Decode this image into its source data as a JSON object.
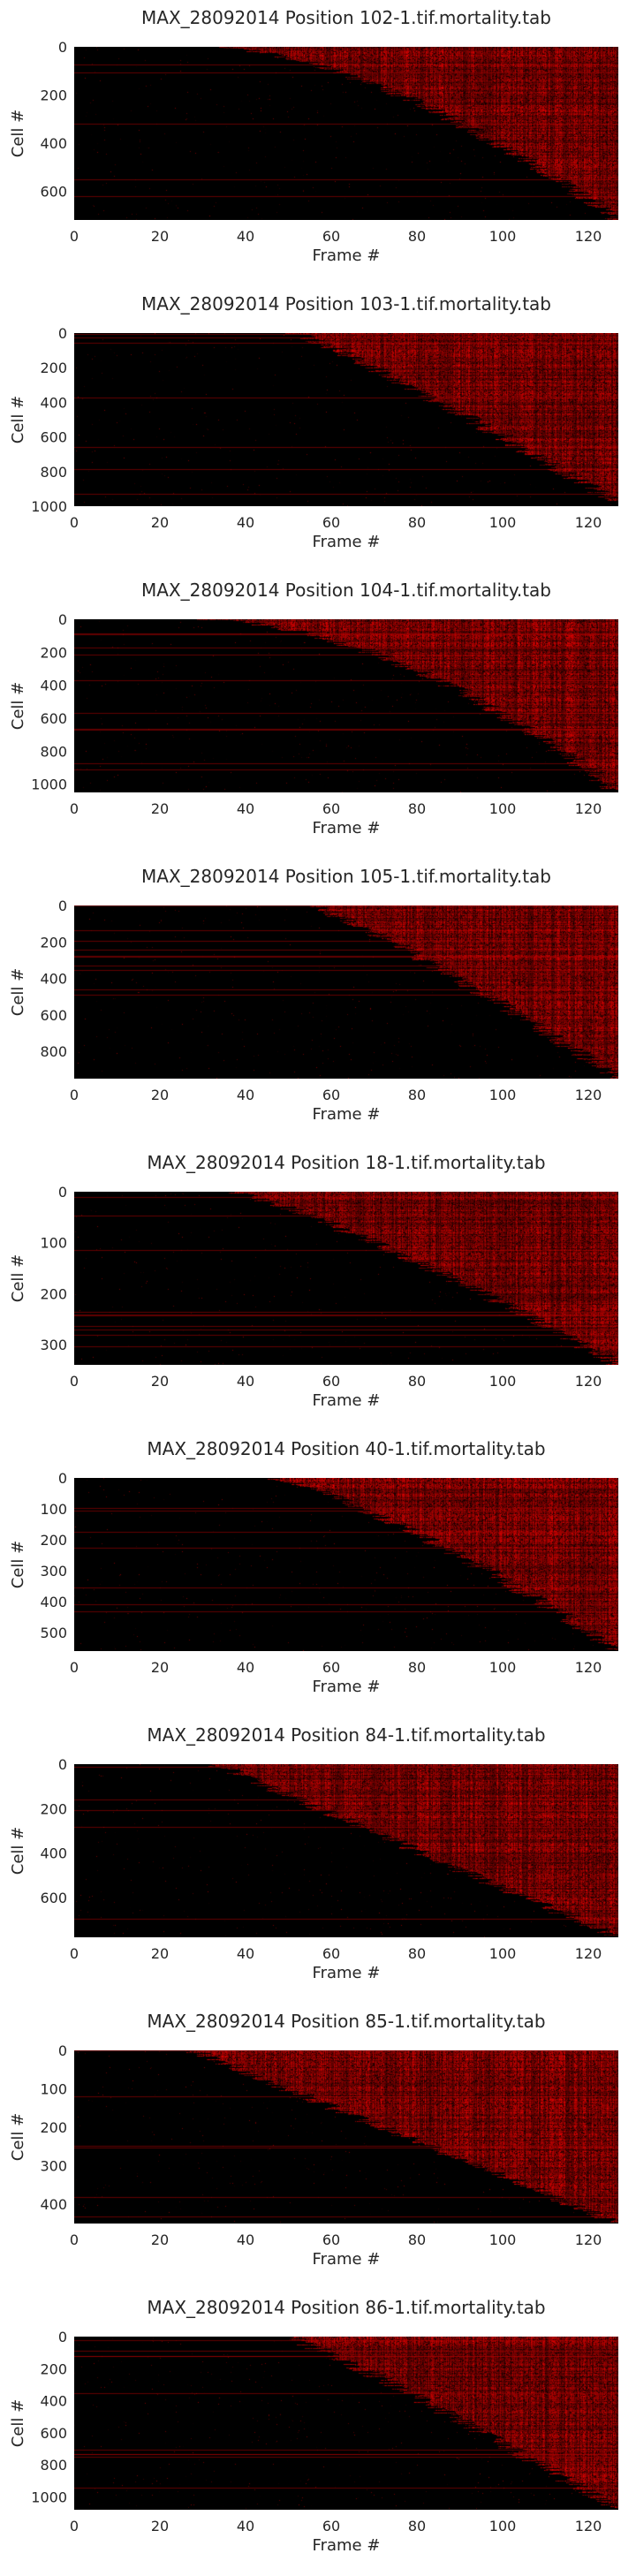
{
  "chart_data": [
    {
      "type": "heatmap",
      "title": "MAX_28092014 Position 102-1.tif.mortality.tab",
      "xlabel": "Frame #",
      "ylabel": "Cell #",
      "xlim": [
        0,
        127
      ],
      "ylim": [
        0,
        720
      ],
      "x_ticks": [
        0,
        20,
        40,
        60,
        80,
        100,
        120
      ],
      "y_ticks": [
        0,
        200,
        400,
        600
      ],
      "grid": false,
      "colormap": {
        "low": "#000000",
        "high": "#ff0000"
      },
      "onset_start_frame": 32,
      "onset_end_frame": 127,
      "onset_shape": 0.6
    },
    {
      "type": "heatmap",
      "title": "MAX_28092014 Position 103-1.tif.mortality.tab",
      "xlabel": "Frame #",
      "ylabel": "Cell #",
      "xlim": [
        0,
        127
      ],
      "ylim": [
        0,
        1000
      ],
      "x_ticks": [
        0,
        20,
        40,
        60,
        80,
        100,
        120
      ],
      "y_ticks": [
        0,
        200,
        400,
        600,
        800,
        1000
      ],
      "grid": false,
      "colormap": {
        "low": "#000000",
        "high": "#ff0000"
      },
      "onset_start_frame": 52,
      "onset_end_frame": 128,
      "onset_shape": 0.9
    },
    {
      "type": "heatmap",
      "title": "MAX_28092014 Position 104-1.tif.mortality.tab",
      "xlabel": "Frame #",
      "ylabel": "Cell #",
      "xlim": [
        0,
        127
      ],
      "ylim": [
        0,
        1050
      ],
      "x_ticks": [
        0,
        20,
        40,
        60,
        80,
        100,
        120
      ],
      "y_ticks": [
        0,
        200,
        400,
        600,
        800,
        1000
      ],
      "grid": false,
      "colormap": {
        "low": "#000000",
        "high": "#ff0000"
      },
      "onset_start_frame": 30,
      "onset_end_frame": 127,
      "onset_shape": 0.55
    },
    {
      "type": "heatmap",
      "title": "MAX_28092014 Position 105-1.tif.mortality.tab",
      "xlabel": "Frame #",
      "ylabel": "Cell #",
      "xlim": [
        0,
        127
      ],
      "ylim": [
        0,
        950
      ],
      "x_ticks": [
        0,
        20,
        40,
        60,
        80,
        100,
        120
      ],
      "y_ticks": [
        0,
        200,
        400,
        600,
        800
      ],
      "grid": false,
      "colormap": {
        "low": "#000000",
        "high": "#ff0000"
      },
      "onset_start_frame": 55,
      "onset_end_frame": 127,
      "onset_shape": 0.85
    },
    {
      "type": "heatmap",
      "title": "MAX_28092014 Position 18-1.tif.mortality.tab",
      "xlabel": "Frame #",
      "ylabel": "Cell #",
      "xlim": [
        0,
        127
      ],
      "ylim": [
        0,
        340
      ],
      "x_ticks": [
        0,
        20,
        40,
        60,
        80,
        100,
        120
      ],
      "y_ticks": [
        0,
        100,
        200,
        300
      ],
      "grid": false,
      "colormap": {
        "low": "#000000",
        "high": "#ff0000"
      },
      "onset_start_frame": 36,
      "onset_end_frame": 127,
      "onset_shape": 0.8
    },
    {
      "type": "heatmap",
      "title": "MAX_28092014 Position 40-1.tif.mortality.tab",
      "xlabel": "Frame #",
      "ylabel": "Cell #",
      "xlim": [
        0,
        127
      ],
      "ylim": [
        0,
        560
      ],
      "x_ticks": [
        0,
        20,
        40,
        60,
        80,
        100,
        120
      ],
      "y_ticks": [
        0,
        100,
        200,
        300,
        400,
        500
      ],
      "grid": false,
      "colormap": {
        "low": "#000000",
        "high": "#ff0000"
      },
      "onset_start_frame": 45,
      "onset_end_frame": 127,
      "onset_shape": 0.75
    },
    {
      "type": "heatmap",
      "title": "MAX_28092014 Position 84-1.tif.mortality.tab",
      "xlabel": "Frame #",
      "ylabel": "Cell #",
      "xlim": [
        0,
        127
      ],
      "ylim": [
        0,
        780
      ],
      "x_ticks": [
        0,
        20,
        40,
        60,
        80,
        100,
        120
      ],
      "y_ticks": [
        0,
        200,
        400,
        600
      ],
      "grid": false,
      "colormap": {
        "low": "#000000",
        "high": "#ff0000"
      },
      "onset_start_frame": 33,
      "onset_end_frame": 127,
      "onset_shape": 1.0
    },
    {
      "type": "heatmap",
      "title": "MAX_28092014 Position 85-1.tif.mortality.tab",
      "xlabel": "Frame #",
      "ylabel": "Cell #",
      "xlim": [
        0,
        127
      ],
      "ylim": [
        0,
        450
      ],
      "x_ticks": [
        0,
        20,
        40,
        60,
        80,
        100,
        120
      ],
      "y_ticks": [
        0,
        100,
        200,
        300,
        400
      ],
      "grid": false,
      "colormap": {
        "low": "#000000",
        "high": "#ff0000"
      },
      "onset_start_frame": 28,
      "onset_end_frame": 127,
      "onset_shape": 1.0
    },
    {
      "type": "heatmap",
      "title": "MAX_28092014 Position 86-1.tif.mortality.tab",
      "xlabel": "Frame #",
      "ylabel": "Cell #",
      "xlim": [
        0,
        127
      ],
      "ylim": [
        0,
        1080
      ],
      "x_ticks": [
        0,
        20,
        40,
        60,
        80,
        100,
        120
      ],
      "y_ticks": [
        0,
        200,
        400,
        600,
        800,
        1000
      ],
      "grid": false,
      "colormap": {
        "low": "#000000",
        "high": "#ff0000"
      },
      "onset_start_frame": 50,
      "onset_end_frame": 127,
      "onset_shape": 0.9
    }
  ]
}
